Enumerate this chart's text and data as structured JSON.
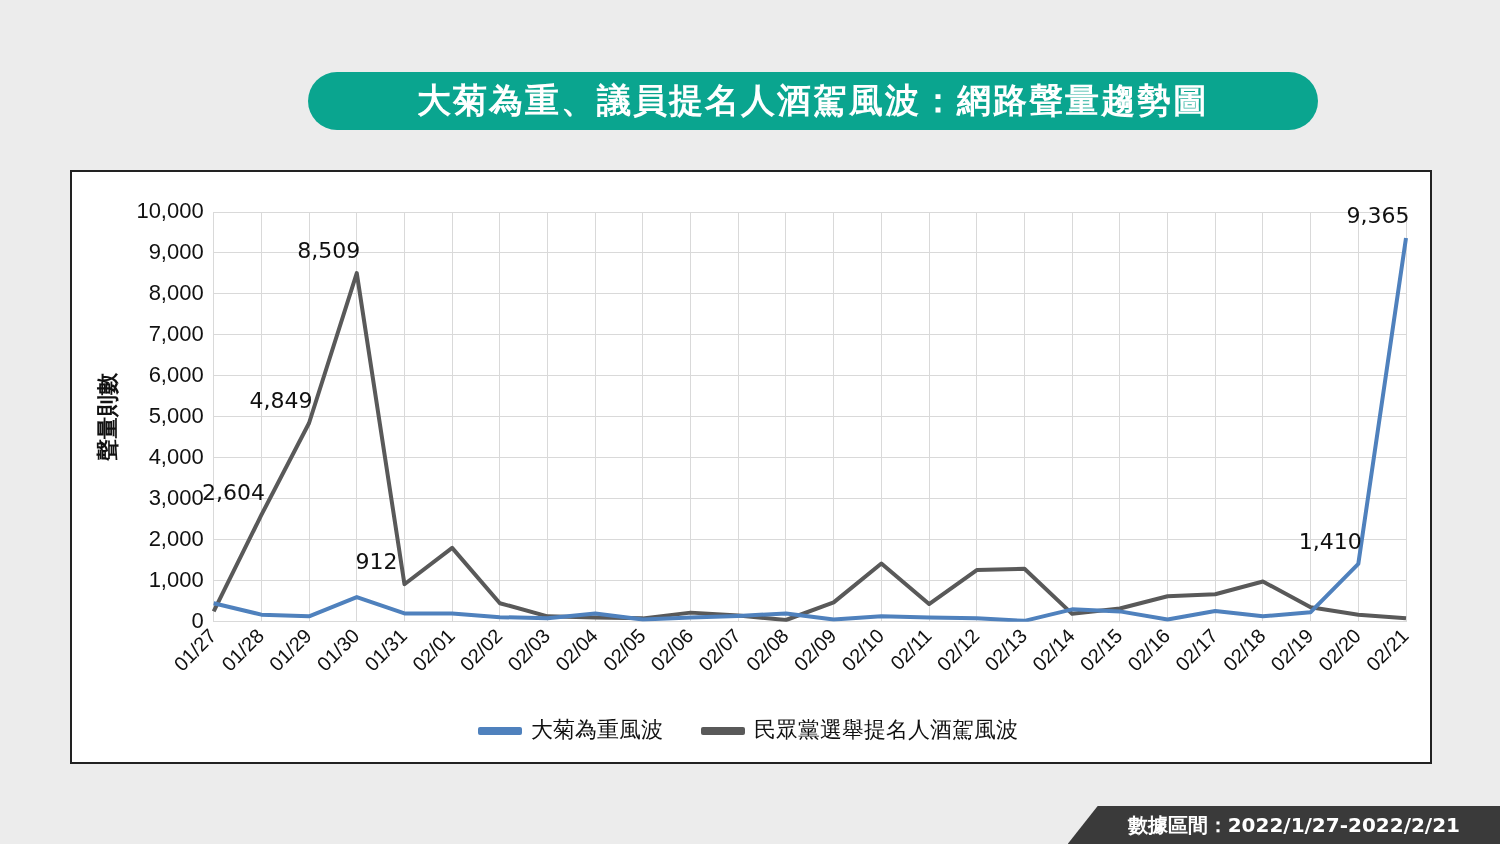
{
  "chart_data": {
    "type": "line",
    "title": "大菊為重、議員提名人酒駕風波：網路聲量趨勢圖",
    "ylabel": "聲量則數",
    "annotations": [
      "數據區間：2022/1/27-2022/2/21"
    ],
    "categories": [
      "01/27",
      "01/28",
      "01/29",
      "01/30",
      "01/31",
      "02/01",
      "02/02",
      "02/03",
      "02/04",
      "02/05",
      "02/06",
      "02/07",
      "02/08",
      "02/09",
      "02/10",
      "02/11",
      "02/12",
      "02/13",
      "02/14",
      "02/15",
      "02/16",
      "02/17",
      "02/18",
      "02/19",
      "02/20",
      "02/21"
    ],
    "series": [
      {
        "name": "大菊為重風波",
        "color": "#4f81bd",
        "values": [
          450,
          170,
          130,
          600,
          200,
          200,
          110,
          80,
          200,
          50,
          100,
          140,
          200,
          50,
          130,
          100,
          80,
          20,
          300,
          250,
          50,
          260,
          130,
          230,
          1410,
          9365
        ],
        "value_labels": [
          null,
          null,
          null,
          null,
          null,
          null,
          null,
          null,
          null,
          null,
          null,
          null,
          null,
          null,
          null,
          null,
          null,
          null,
          null,
          null,
          null,
          null,
          null,
          null,
          "1,410",
          "9,365"
        ]
      },
      {
        "name": "民眾黨選舉提名人酒駕風波",
        "color": "#595959",
        "values": [
          250,
          2604,
          4849,
          8509,
          912,
          1800,
          450,
          130,
          100,
          80,
          220,
          150,
          40,
          470,
          1420,
          430,
          1260,
          1290,
          190,
          320,
          620,
          670,
          980,
          350,
          170,
          80
        ],
        "value_labels": [
          null,
          "2,604",
          "4,849",
          "8,509",
          "912",
          null,
          null,
          null,
          null,
          null,
          null,
          null,
          null,
          null,
          null,
          null,
          null,
          null,
          null,
          null,
          null,
          null,
          null,
          null,
          null,
          null
        ]
      }
    ],
    "ylim": [
      0,
      10000
    ],
    "yticks": [
      {
        "value": 0,
        "label": "0"
      },
      {
        "value": 1000,
        "label": "1,000"
      },
      {
        "value": 2000,
        "label": "2,000"
      },
      {
        "value": 3000,
        "label": "3,000"
      },
      {
        "value": 4000,
        "label": "4,000"
      },
      {
        "value": 5000,
        "label": "5,000"
      },
      {
        "value": 6000,
        "label": "6,000"
      },
      {
        "value": 7000,
        "label": "7,000"
      },
      {
        "value": 8000,
        "label": "8,000"
      },
      {
        "value": 9000,
        "label": "9,000"
      },
      {
        "value": 10000,
        "label": "10,000"
      }
    ],
    "grid": true,
    "legend": "bottom",
    "marker": "none",
    "line_style": "solid"
  }
}
